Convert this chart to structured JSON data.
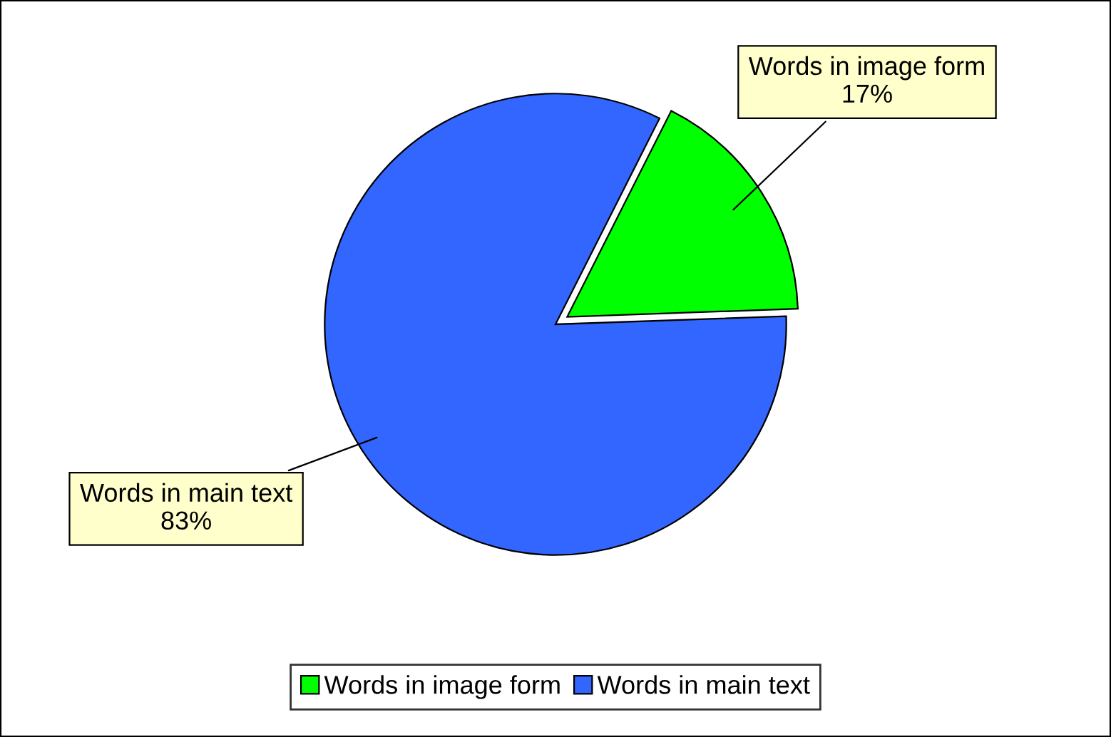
{
  "chart_data": {
    "type": "pie",
    "categories": [
      "Words in image form",
      "Words in main text"
    ],
    "values": [
      17,
      83
    ],
    "value_labels": [
      "17%",
      "83%"
    ],
    "colors": [
      "#00ff00",
      "#3366ff"
    ],
    "legend": "bottom"
  }
}
